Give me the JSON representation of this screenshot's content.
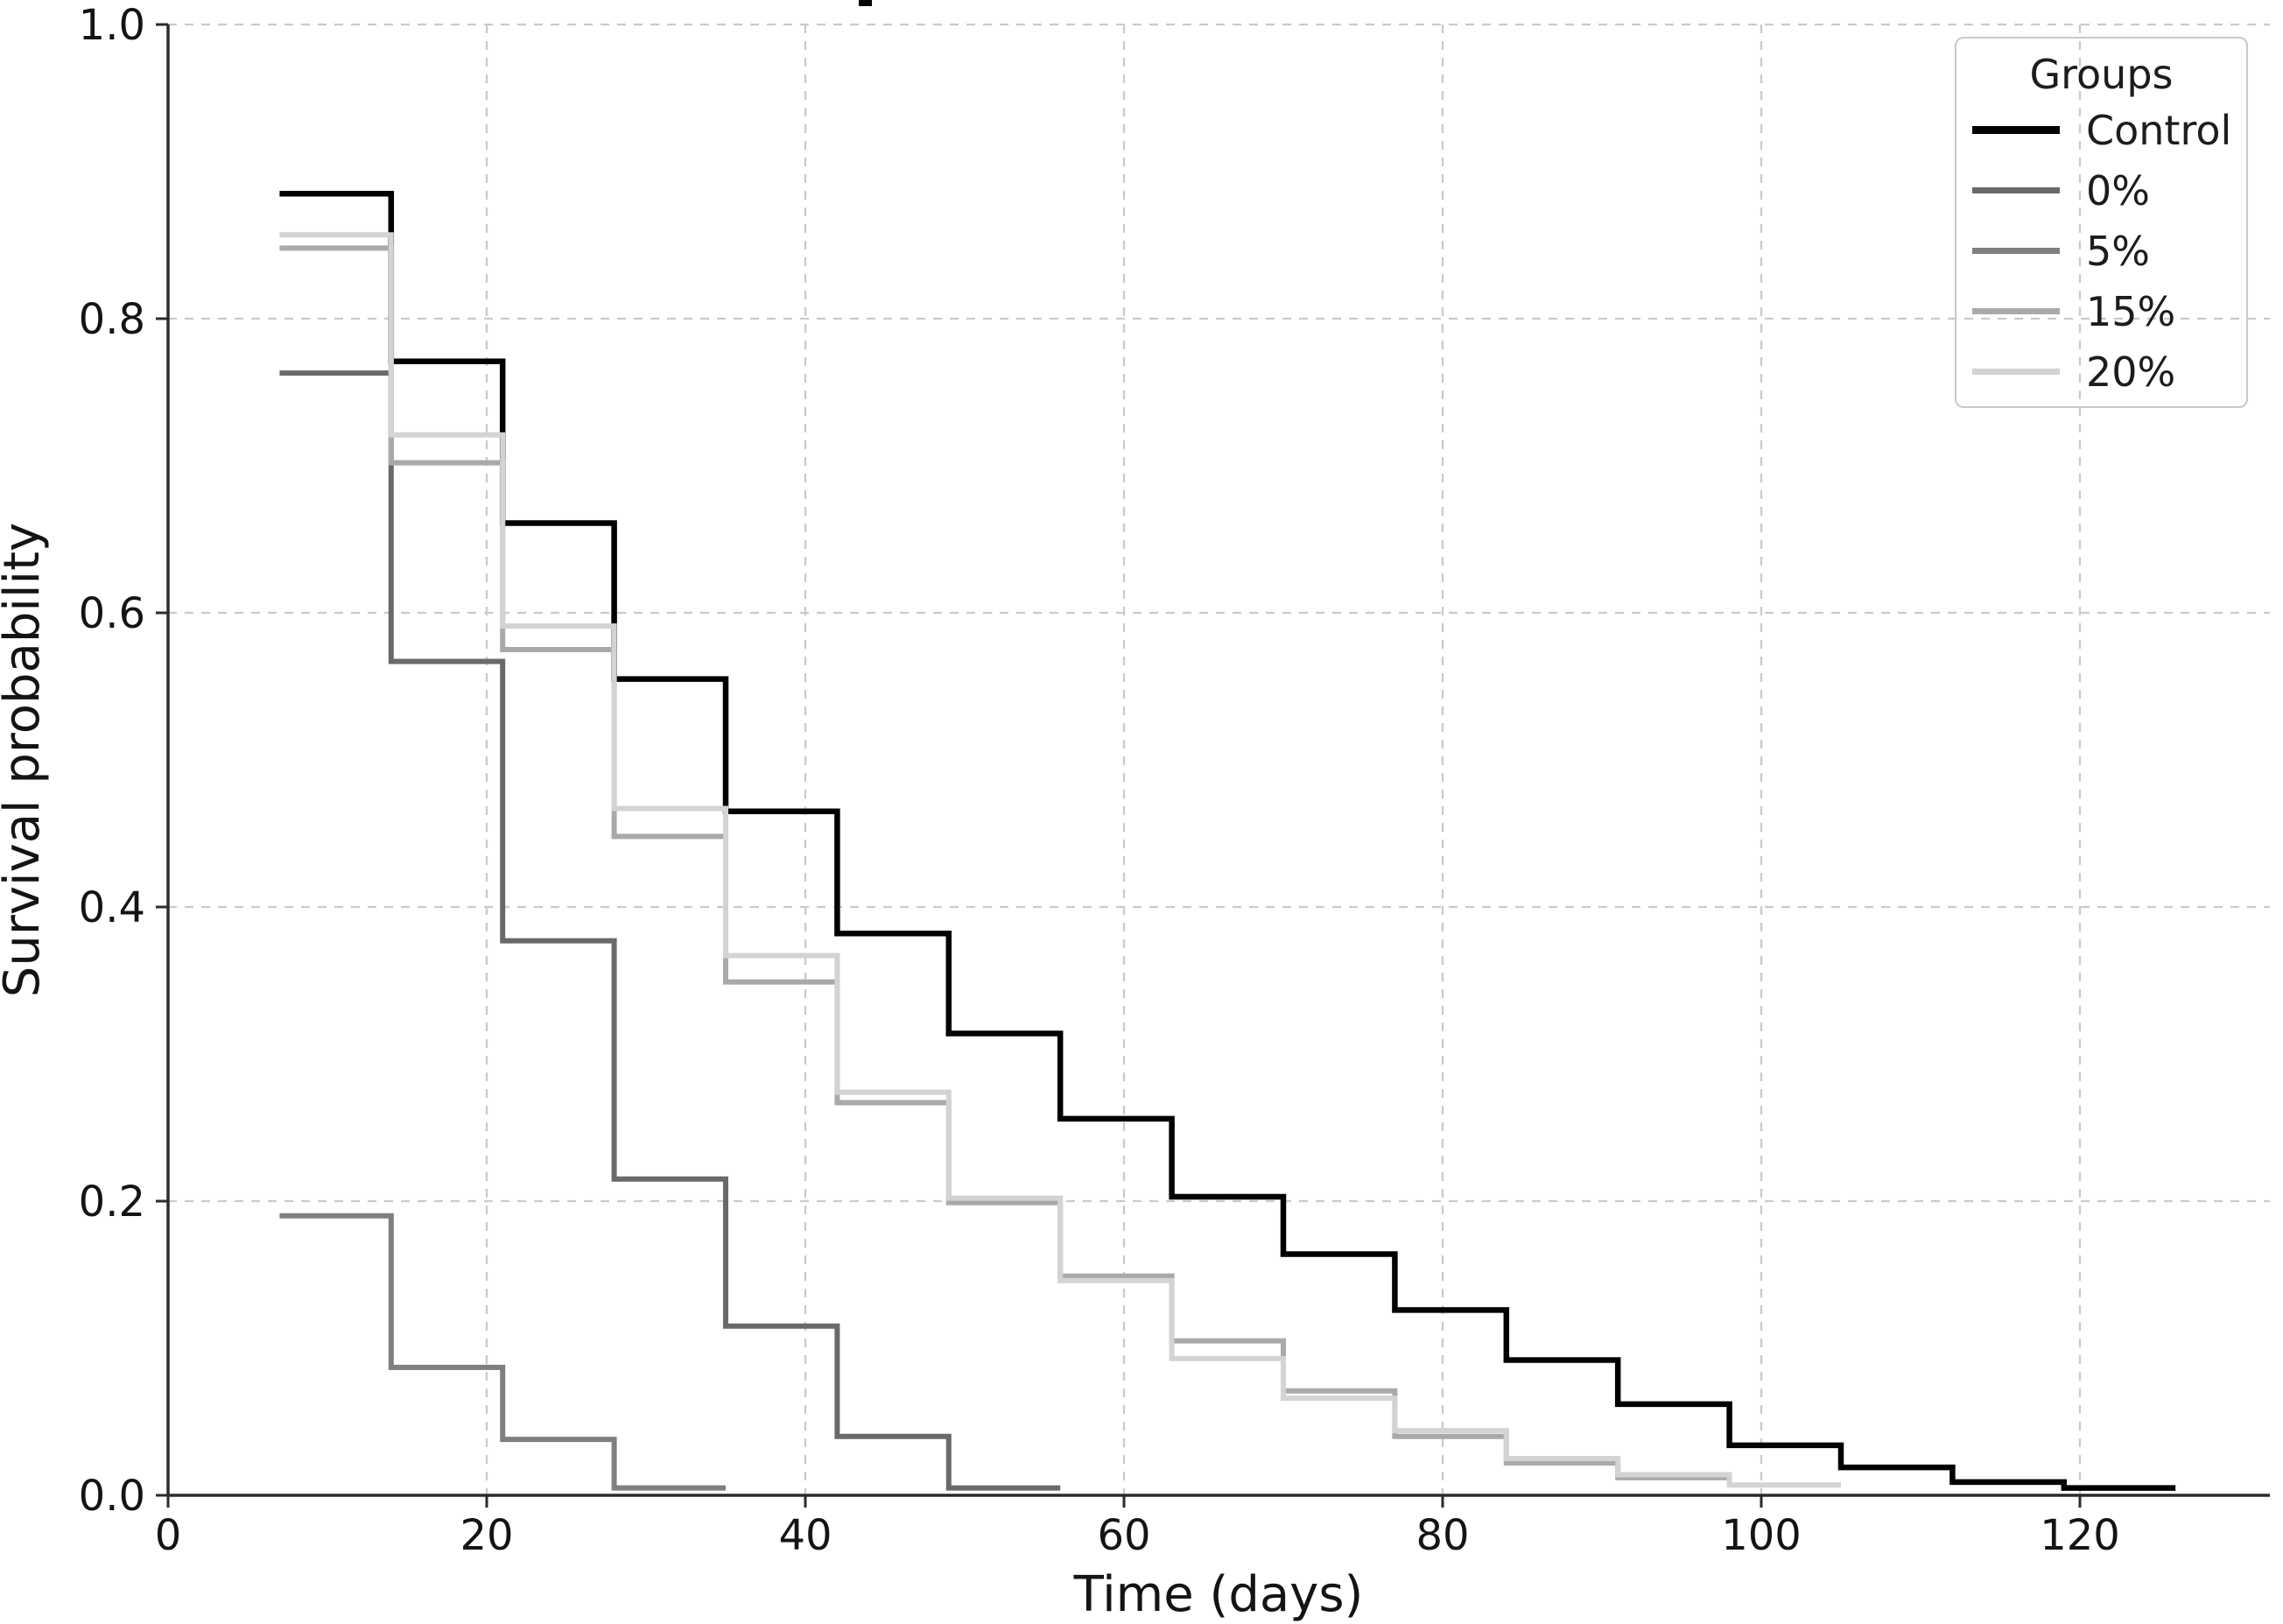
{
  "figure": {
    "clipped_title_fragment": true,
    "background_color": "#ffffff",
    "grid_color": "#cacaca",
    "spine_color": "#2b2b2b"
  },
  "axes": {
    "xlabel": "Time (days)",
    "ylabel": "Survival probability",
    "x_tick_labels": [
      "0",
      "20",
      "40",
      "60",
      "80",
      "100",
      "120"
    ],
    "y_tick_labels": [
      "0.0",
      "0.2",
      "0.4",
      "0.6",
      "0.8",
      "1.0"
    ]
  },
  "legend": {
    "title": "Groups"
  },
  "chart_data": {
    "type": "line",
    "subtype": "kaplan-meier-step-post",
    "title": "",
    "xlabel": "Time (days)",
    "ylabel": "Survival probability",
    "xlim": [
      0,
      132
    ],
    "ylim": [
      0.0,
      1.0
    ],
    "x_ticks": [
      0,
      20,
      40,
      60,
      80,
      100,
      120
    ],
    "y_ticks": [
      0.0,
      0.2,
      0.4,
      0.6,
      0.8,
      1.0
    ],
    "grid": "dashed",
    "legend_position": "upper right",
    "legend_title": "Groups",
    "series": [
      {
        "name": "Control",
        "color": "#000000",
        "line_width": 6.5,
        "days": [
          7,
          14,
          21,
          28,
          35,
          42,
          49,
          56,
          63,
          70,
          77,
          84,
          91,
          98,
          105,
          112,
          119
        ],
        "values": [
          0.885,
          0.771,
          0.661,
          0.555,
          0.465,
          0.382,
          0.314,
          0.256,
          0.203,
          0.164,
          0.126,
          0.092,
          0.062,
          0.034,
          0.019,
          0.009,
          0.005
        ],
        "end_day": 126
      },
      {
        "name": "0%",
        "color": "#696969",
        "line_width": 6,
        "days": [
          7,
          14,
          21,
          28,
          35,
          42,
          49
        ],
        "values": [
          0.763,
          0.567,
          0.377,
          0.215,
          0.115,
          0.04,
          0.005
        ],
        "end_day": 56
      },
      {
        "name": "5%",
        "color": "#7f7f7f",
        "line_width": 6,
        "days": [
          7,
          14,
          21,
          28
        ],
        "values": [
          0.19,
          0.087,
          0.038,
          0.005
        ],
        "end_day": 35
      },
      {
        "name": "15%",
        "color": "#a9a9a9",
        "line_width": 6,
        "days": [
          7,
          14,
          21,
          28,
          35,
          42,
          49,
          56,
          63,
          70,
          77,
          84,
          91
        ],
        "values": [
          0.848,
          0.702,
          0.575,
          0.448,
          0.349,
          0.267,
          0.199,
          0.149,
          0.105,
          0.071,
          0.04,
          0.022,
          0.012
        ],
        "end_day": 98
      },
      {
        "name": "20%",
        "color": "#d3d3d3",
        "line_width": 6,
        "days": [
          7,
          14,
          21,
          28,
          35,
          42,
          49,
          56,
          63,
          70,
          77,
          84,
          91,
          98
        ],
        "values": [
          0.857,
          0.721,
          0.591,
          0.467,
          0.367,
          0.274,
          0.202,
          0.146,
          0.093,
          0.066,
          0.044,
          0.025,
          0.014,
          0.007
        ],
        "end_day": 105
      }
    ]
  }
}
